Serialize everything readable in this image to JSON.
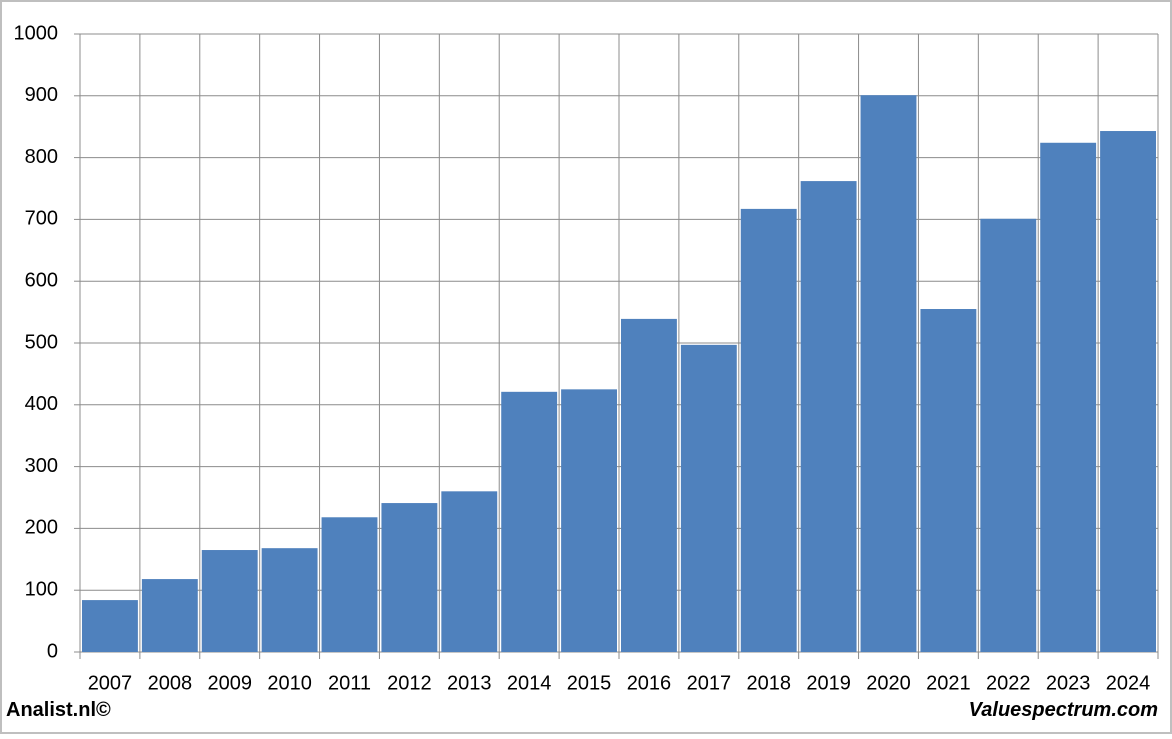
{
  "chart_data": {
    "type": "bar",
    "categories": [
      "2007",
      "2008",
      "2009",
      "2010",
      "2011",
      "2012",
      "2013",
      "2014",
      "2015",
      "2016",
      "2017",
      "2018",
      "2019",
      "2020",
      "2021",
      "2022",
      "2023",
      "2024"
    ],
    "values": [
      84,
      118,
      165,
      168,
      218,
      241,
      260,
      421,
      425,
      539,
      497,
      717,
      762,
      901,
      555,
      701,
      824,
      843
    ],
    "color": "#4f81bd",
    "ylim": [
      0,
      1000
    ],
    "yticks": [
      0,
      100,
      200,
      300,
      400,
      500,
      600,
      700,
      800,
      900,
      1000
    ],
    "grid": true,
    "annotations": [
      "Analist.nl©",
      "Valuespectrum.com"
    ]
  }
}
